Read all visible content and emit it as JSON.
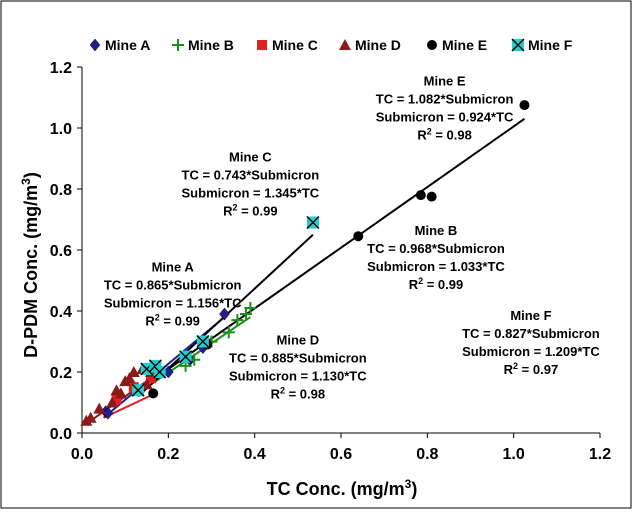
{
  "chart_data": {
    "type": "scatter",
    "xlabel": "TC Conc. (mg/m³)",
    "ylabel": "D-PDM Conc. (mg/m³)",
    "xlim": [
      0.0,
      1.2
    ],
    "ylim": [
      0.0,
      1.2
    ],
    "x_ticks": [
      "0.0",
      "0.2",
      "0.4",
      "0.6",
      "0.8",
      "1.0",
      "1.2"
    ],
    "y_ticks": [
      "0.0",
      "0.2",
      "0.4",
      "0.6",
      "0.8",
      "1.0",
      "1.2"
    ],
    "grid": false,
    "legend_position": "top",
    "series": [
      {
        "name": "Mine A",
        "color": "#1f1f8f",
        "marker": "diamond",
        "points": [
          [
            0.055,
            0.07
          ],
          [
            0.06,
            0.065
          ],
          [
            0.13,
            0.14
          ],
          [
            0.2,
            0.2
          ],
          [
            0.25,
            0.24
          ],
          [
            0.28,
            0.28
          ],
          [
            0.33,
            0.39
          ]
        ],
        "fit": [
          [
            0.05,
            0.05
          ],
          [
            0.33,
            0.38
          ]
        ]
      },
      {
        "name": "Mine B",
        "color": "#1a8f1a",
        "marker": "plus",
        "points": [
          [
            0.24,
            0.22
          ],
          [
            0.26,
            0.24
          ],
          [
            0.3,
            0.3
          ],
          [
            0.34,
            0.33
          ],
          [
            0.36,
            0.37
          ],
          [
            0.38,
            0.39
          ],
          [
            0.39,
            0.41
          ]
        ],
        "fit": [
          [
            0.15,
            0.15
          ],
          [
            0.39,
            0.38
          ]
        ]
      },
      {
        "name": "Mine C",
        "color": "#e02020",
        "marker": "square",
        "points": [
          [
            0.08,
            0.11
          ],
          [
            0.12,
            0.15
          ],
          [
            0.16,
            0.18
          ]
        ],
        "fit": [
          [
            0.05,
            0.05
          ],
          [
            0.17,
            0.13
          ]
        ]
      },
      {
        "name": "Mine D",
        "color": "#8b1a1a",
        "marker": "triangle",
        "points": [
          [
            0.01,
            0.04
          ],
          [
            0.02,
            0.05
          ],
          [
            0.04,
            0.08
          ],
          [
            0.07,
            0.1
          ],
          [
            0.08,
            0.14
          ],
          [
            0.09,
            0.13
          ],
          [
            0.1,
            0.17
          ],
          [
            0.11,
            0.18
          ],
          [
            0.12,
            0.2
          ],
          [
            0.14,
            0.21
          ],
          [
            0.15,
            0.16
          ],
          [
            0.16,
            0.2
          ]
        ],
        "fit": [
          [
            0.01,
            0.03
          ],
          [
            0.16,
            0.18
          ]
        ]
      },
      {
        "name": "Mine E",
        "color": "#000000",
        "marker": "circle",
        "points": [
          [
            0.165,
            0.13
          ],
          [
            0.29,
            0.29
          ],
          [
            0.64,
            0.645
          ],
          [
            0.785,
            0.78
          ],
          [
            0.81,
            0.775
          ],
          [
            1.025,
            1.075
          ]
        ],
        "fit": [
          [
            0.15,
            0.16
          ],
          [
            1.025,
            1.03
          ]
        ]
      },
      {
        "name": "Mine F",
        "color": "#20d0d0",
        "marker": "xbox",
        "points": [
          [
            0.13,
            0.14
          ],
          [
            0.15,
            0.21
          ],
          [
            0.17,
            0.22
          ],
          [
            0.18,
            0.2
          ],
          [
            0.24,
            0.25
          ],
          [
            0.28,
            0.3
          ],
          [
            0.535,
            0.69
          ]
        ],
        "fit": [
          [
            0.13,
            0.12
          ],
          [
            0.535,
            0.65
          ]
        ]
      }
    ],
    "annotations": [
      {
        "id": "A",
        "lines": [
          "Mine A",
          "TC = 0.865*Submicron",
          "Submicron = 1.156*TC",
          "R² = 0.99"
        ],
        "at": [
          0.21,
          0.53
        ]
      },
      {
        "id": "B",
        "lines": [
          "Mine B",
          "TC = 0.968*Submicron",
          "Submicron = 1.033*TC",
          "R² = 0.99"
        ],
        "at": [
          0.82,
          0.65
        ]
      },
      {
        "id": "C",
        "lines": [
          "Mine C",
          "TC = 0.743*Submicron",
          "Submicron = 1.345*TC",
          "R² = 0.99"
        ],
        "at": [
          0.39,
          0.89
        ]
      },
      {
        "id": "D",
        "lines": [
          "Mine D",
          "TC = 0.885*Submicron",
          "Submicron = 1.130*TC",
          "R² = 0.98"
        ],
        "at": [
          0.5,
          0.29
        ]
      },
      {
        "id": "E",
        "lines": [
          "Mine E",
          "TC = 1.082*Submicron",
          "Submicron = 0.924*TC",
          "R² = 0.98"
        ],
        "at": [
          0.84,
          1.14
        ]
      },
      {
        "id": "F",
        "lines": [
          "Mine F",
          "TC = 0.827*Submicron",
          "Submicron = 1.209*TC",
          "R² = 0.97"
        ],
        "at": [
          1.04,
          0.37
        ]
      }
    ]
  }
}
